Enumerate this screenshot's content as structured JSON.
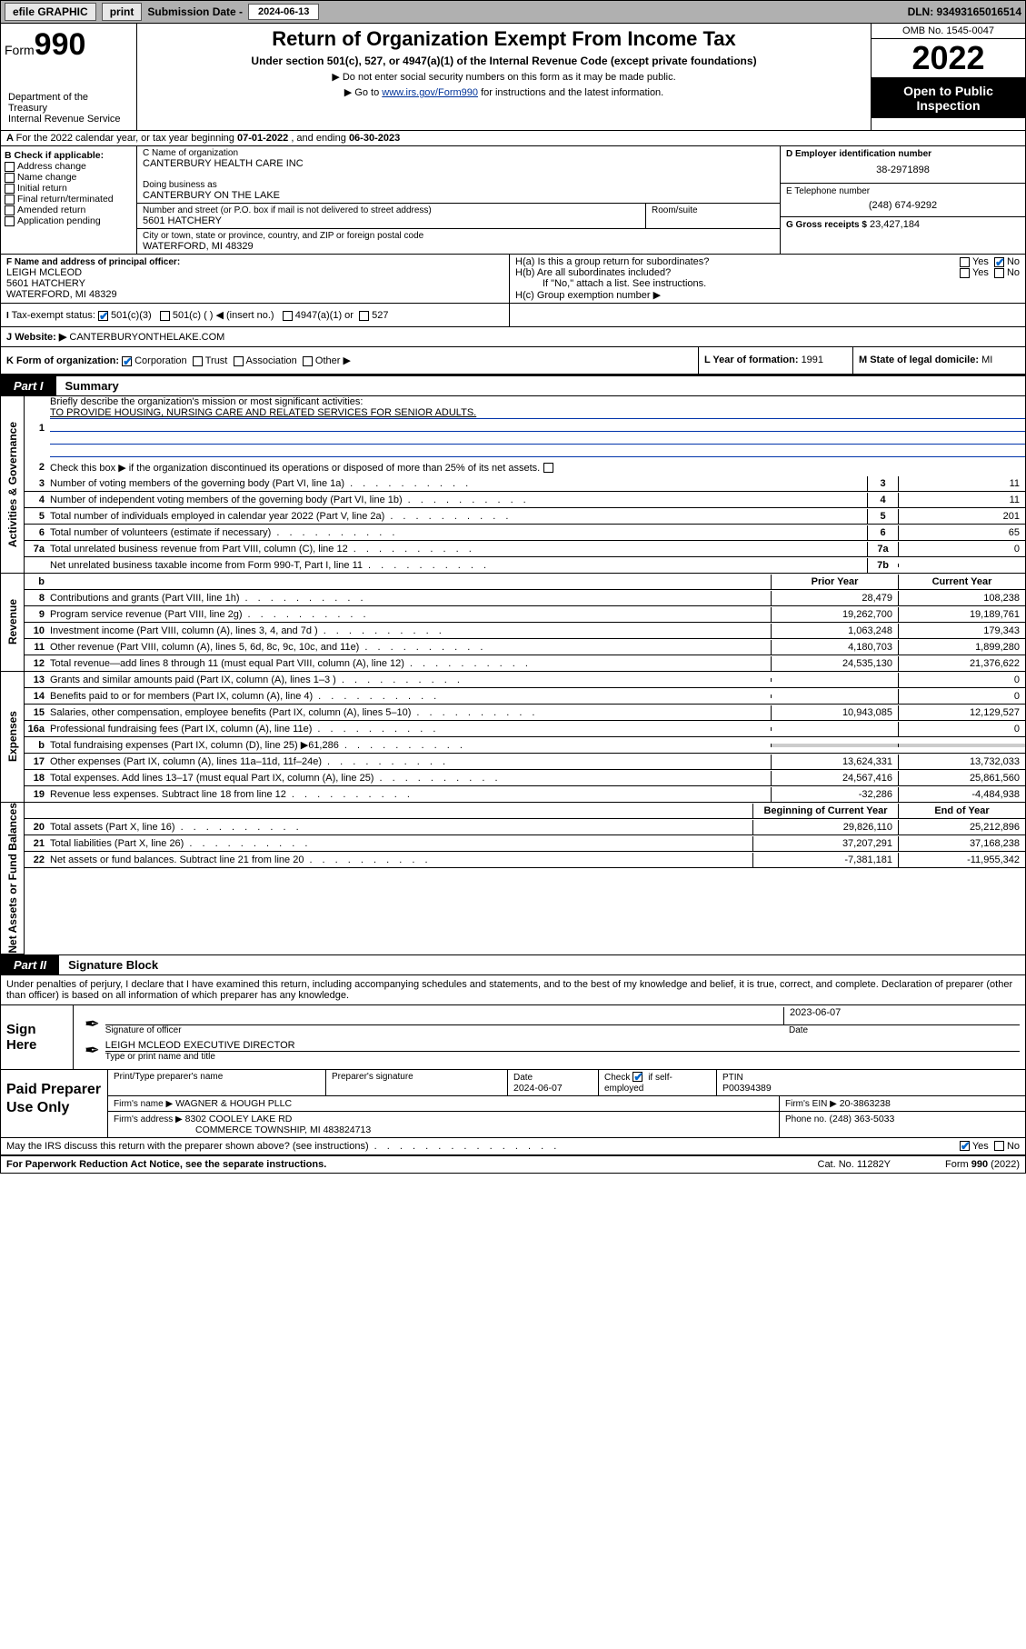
{
  "topbar": {
    "efile": "efile GRAPHIC",
    "print": "print",
    "sub_label": "Submission Date - ",
    "sub_date": "2024-06-13",
    "dln": "DLN: 93493165016514"
  },
  "header": {
    "form_word": "Form",
    "form_num": "990",
    "title": "Return of Organization Exempt From Income Tax",
    "subtitle": "Under section 501(c), 527, or 4947(a)(1) of the Internal Revenue Code (except private foundations)",
    "hint1": "▶ Do not enter social security numbers on this form as it may be made public.",
    "hint2_pre": "▶ Go to ",
    "hint2_link": "www.irs.gov/Form990",
    "hint2_post": " for instructions and the latest information.",
    "omb": "OMB No. 1545-0047",
    "year": "2022",
    "otp": "Open to Public Inspection",
    "dept": "Department of the Treasury\nInternal Revenue Service"
  },
  "lineA": {
    "pre": "For the 2022 calendar year, or tax year beginning ",
    "start": "07-01-2022",
    "mid": " , and ending ",
    "end": "06-30-2023"
  },
  "boxB": {
    "title": "B Check if applicable:",
    "items": [
      "Address change",
      "Name change",
      "Initial return",
      "Final return/terminated",
      "Amended return",
      "Application pending"
    ]
  },
  "boxC": {
    "label_name": "C Name of organization",
    "org": "CANTERBURY HEALTH CARE INC",
    "dba_label": "Doing business as",
    "dba": "CANTERBURY ON THE LAKE",
    "addr_label": "Number and street (or P.O. box if mail is not delivered to street address)",
    "room_label": "Room/suite",
    "street": "5601 HATCHERY",
    "city_label": "City or town, state or province, country, and ZIP or foreign postal code",
    "city": "WATERFORD, MI  48329"
  },
  "boxD": {
    "label": "D Employer identification number",
    "val": "38-2971898"
  },
  "boxE": {
    "label": "E Telephone number",
    "val": "(248) 674-9292"
  },
  "boxG": {
    "label": "G Gross receipts $",
    "val": "23,427,184"
  },
  "boxF": {
    "label": "F Name and address of principal officer:",
    "name": "LEIGH MCLEOD",
    "street": "5601 HATCHERY",
    "city": "WATERFORD, MI  48329"
  },
  "boxH": {
    "a": "H(a)  Is this a group return for subordinates?",
    "b": "H(b)  Are all subordinates included?",
    "b_note": "If \"No,\" attach a list. See instructions.",
    "c": "H(c)  Group exemption number ▶",
    "yes": "Yes",
    "no": "No"
  },
  "boxI": {
    "label": "Tax-exempt status:",
    "o1": "501(c)(3)",
    "o2": "501(c) (   ) ◀ (insert no.)",
    "o3": "4947(a)(1) or",
    "o4": "527"
  },
  "boxJ": {
    "label": "Website: ▶",
    "val": "CANTERBURYONTHELAKE.COM"
  },
  "boxK": {
    "label": "K Form of organization:",
    "o1": "Corporation",
    "o2": "Trust",
    "o3": "Association",
    "o4": "Other ▶"
  },
  "boxL": {
    "label": "L Year of formation: ",
    "val": "1991"
  },
  "boxM": {
    "label": "M State of legal domicile: ",
    "val": "MI"
  },
  "parts": {
    "p1": "Part I",
    "p1t": "Summary",
    "p2": "Part II",
    "p2t": "Signature Block"
  },
  "summary": {
    "q1": "Briefly describe the organization's mission or most significant activities:",
    "mission": "TO PROVIDE HOUSING, NURSING CARE AND RELATED SERVICES FOR SENIOR ADULTS.",
    "q2": "Check this box ▶        if the organization discontinued its operations or disposed of more than 25% of its net assets.",
    "rows_gov": [
      {
        "n": "3",
        "t": "Number of voting members of the governing body (Part VI, line 1a)",
        "b": "3",
        "v": "11"
      },
      {
        "n": "4",
        "t": "Number of independent voting members of the governing body (Part VI, line 1b)",
        "b": "4",
        "v": "11"
      },
      {
        "n": "5",
        "t": "Total number of individuals employed in calendar year 2022 (Part V, line 2a)",
        "b": "5",
        "v": "201"
      },
      {
        "n": "6",
        "t": "Total number of volunteers (estimate if necessary)",
        "b": "6",
        "v": "65"
      },
      {
        "n": "7a",
        "t": "Total unrelated business revenue from Part VIII, column (C), line 12",
        "b": "7a",
        "v": "0"
      },
      {
        "n": "",
        "t": "Net unrelated business taxable income from Form 990-T, Part I, line 11",
        "b": "7b",
        "v": ""
      }
    ],
    "col_hdr_prior": "Prior Year",
    "col_hdr_curr": "Current Year",
    "col_hdr_beg": "Beginning of Current Year",
    "col_hdr_end": "End of Year",
    "rows_rev": [
      {
        "n": "8",
        "t": "Contributions and grants (Part VIII, line 1h)",
        "p": "28,479",
        "c": "108,238"
      },
      {
        "n": "9",
        "t": "Program service revenue (Part VIII, line 2g)",
        "p": "19,262,700",
        "c": "19,189,761"
      },
      {
        "n": "10",
        "t": "Investment income (Part VIII, column (A), lines 3, 4, and 7d )",
        "p": "1,063,248",
        "c": "179,343"
      },
      {
        "n": "11",
        "t": "Other revenue (Part VIII, column (A), lines 5, 6d, 8c, 9c, 10c, and 11e)",
        "p": "4,180,703",
        "c": "1,899,280"
      },
      {
        "n": "12",
        "t": "Total revenue—add lines 8 through 11 (must equal Part VIII, column (A), line 12)",
        "p": "24,535,130",
        "c": "21,376,622"
      }
    ],
    "rows_exp": [
      {
        "n": "13",
        "t": "Grants and similar amounts paid (Part IX, column (A), lines 1–3 )",
        "p": "",
        "c": "0"
      },
      {
        "n": "14",
        "t": "Benefits paid to or for members (Part IX, column (A), line 4)",
        "p": "",
        "c": "0"
      },
      {
        "n": "15",
        "t": "Salaries, other compensation, employee benefits (Part IX, column (A), lines 5–10)",
        "p": "10,943,085",
        "c": "12,129,527"
      },
      {
        "n": "16a",
        "t": "Professional fundraising fees (Part IX, column (A), line 11e)",
        "p": "",
        "c": "0"
      },
      {
        "n": "b",
        "t": "Total fundraising expenses (Part IX, column (D), line 25) ▶61,286",
        "p": "__shade__",
        "c": "__shade__"
      },
      {
        "n": "17",
        "t": "Other expenses (Part IX, column (A), lines 11a–11d, 11f–24e)",
        "p": "13,624,331",
        "c": "13,732,033"
      },
      {
        "n": "18",
        "t": "Total expenses. Add lines 13–17 (must equal Part IX, column (A), line 25)",
        "p": "24,567,416",
        "c": "25,861,560"
      },
      {
        "n": "19",
        "t": "Revenue less expenses. Subtract line 18 from line 12",
        "p": "-32,286",
        "c": "-4,484,938"
      }
    ],
    "rows_net": [
      {
        "n": "20",
        "t": "Total assets (Part X, line 16)",
        "p": "29,826,110",
        "c": "25,212,896"
      },
      {
        "n": "21",
        "t": "Total liabilities (Part X, line 26)",
        "p": "37,207,291",
        "c": "37,168,238"
      },
      {
        "n": "22",
        "t": "Net assets or fund balances. Subtract line 21 from line 20",
        "p": "-7,381,181",
        "c": "-11,955,342"
      }
    ],
    "vlabels": {
      "gov": "Activities & Governance",
      "rev": "Revenue",
      "exp": "Expenses",
      "net": "Net Assets or Fund Balances"
    }
  },
  "sigintro": "Under penalties of perjury, I declare that I have examined this return, including accompanying schedules and statements, and to the best of my knowledge and belief, it is true, correct, and complete. Declaration of preparer (other than officer) is based on all information of which preparer has any knowledge.",
  "sign": {
    "here": "Sign Here",
    "sigoff": "Signature of officer",
    "date_lbl": "Date",
    "date": "2023-06-07",
    "name": "LEIGH MCLEOD  EXECUTIVE DIRECTOR",
    "name_lbl": "Type or print name and title"
  },
  "prep": {
    "title": "Paid Preparer Use Only",
    "h1": "Print/Type preparer's name",
    "h2": "Preparer's signature",
    "h3_lbl": "Date",
    "h3": "2024-06-07",
    "h4_lbl": "Check",
    "h4_sub": "if self-employed",
    "h5_lbl": "PTIN",
    "h5": "P00394389",
    "firm_lbl": "Firm's name     ▶",
    "firm": "WAGNER & HOUGH PLLC",
    "ein_lbl": "Firm's EIN ▶",
    "ein": "20-3863238",
    "addr_lbl": "Firm's address ▶",
    "addr1": "8302 COOLEY LAKE RD",
    "addr2": "COMMERCE TOWNSHIP, MI  483824713",
    "phone_lbl": "Phone no.",
    "phone": "(248) 363-5033"
  },
  "discuss": {
    "q": "May the IRS discuss this return with the preparer shown above? (see instructions)",
    "yes": "Yes",
    "no": "No"
  },
  "footer": {
    "pra": "For Paperwork Reduction Act Notice, see the separate instructions.",
    "cat": "Cat. No. 11282Y",
    "form": "Form 990 (2022)"
  }
}
